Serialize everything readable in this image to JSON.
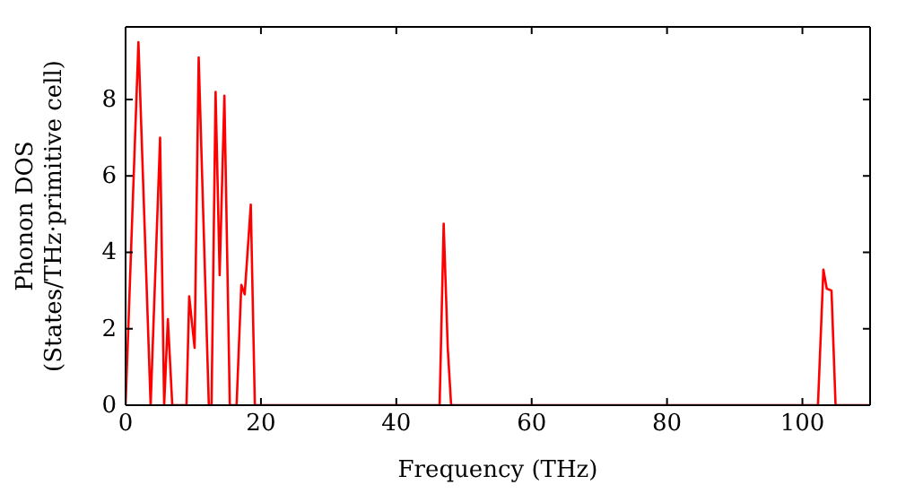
{
  "chart_data": {
    "type": "line",
    "xlabel": "Frequency (THz)",
    "ylabel": "Phonon DOS\n(States/THz·primitive cell)",
    "xlim": [
      0,
      110
    ],
    "xticks": [
      0,
      20,
      40,
      60,
      80,
      100
    ],
    "ylim": [
      0,
      9.9
    ],
    "yticks": [
      0,
      2,
      4,
      6,
      8
    ],
    "marker": "none",
    "line_style": "solid",
    "series": [
      {
        "color": "#ff0000",
        "x": [
          0,
          1.9,
          3.7,
          5.1,
          5.7,
          6.25,
          6.9,
          9.0,
          9.4,
          10.2,
          10.8,
          12.3,
          12.7,
          13.3,
          13.9,
          14.6,
          15.4,
          16.4,
          17.1,
          17.6,
          18.5,
          19.1,
          46.4,
          47.0,
          47.6,
          48.1,
          102.3,
          103.1,
          103.6,
          104.3,
          104.9,
          110
        ],
        "values": [
          0,
          9.5,
          0,
          7.0,
          0,
          2.25,
          0,
          0,
          2.85,
          1.5,
          9.1,
          0,
          0,
          8.2,
          3.4,
          8.1,
          0,
          0,
          3.15,
          2.9,
          5.25,
          0,
          0,
          4.75,
          1.5,
          0,
          0,
          3.55,
          3.05,
          3.0,
          0,
          0
        ]
      }
    ]
  }
}
